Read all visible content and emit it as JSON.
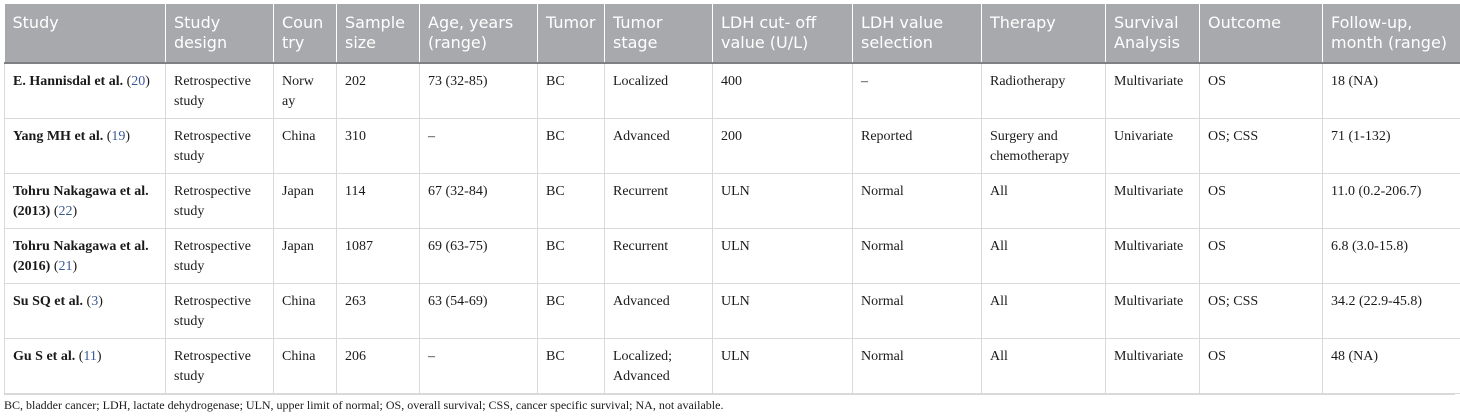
{
  "table": {
    "headers": [
      "Study",
      "Study design",
      "Coun try",
      "Sample size",
      "Age, years (range)",
      "Tumor",
      "Tumor stage",
      "LDH cut- off value (U/L)",
      "LDH value selection",
      "Therapy",
      "Survival Analysis",
      "Outcome",
      "Follow-up, month (range)"
    ],
    "rows": [
      {
        "study_name": "E. Hannisdal et al.",
        "study_ref": "20",
        "design": "Retrospective study",
        "country": "Norw ay",
        "size": "202",
        "age": "73 (32-85)",
        "tumor": "BC",
        "stage": "Localized",
        "cutoff": "400",
        "selection": "–",
        "therapy": "Radiotherapy",
        "survival": "Multivariate",
        "outcome": "OS",
        "followup": "18 (NA)"
      },
      {
        "study_name": "Yang MH et al.",
        "study_ref": "19",
        "design": "Retrospective study",
        "country": "China",
        "size": "310",
        "age": "–",
        "tumor": "BC",
        "stage": "Advanced",
        "cutoff": "200",
        "selection": "Reported",
        "therapy": "Surgery and chemotherapy",
        "survival": "Univariate",
        "outcome": "OS; CSS",
        "followup": "71 (1-132)"
      },
      {
        "study_name": "Tohru Nakagawa et al. (2013)",
        "study_ref": "22",
        "design": "Retrospective study",
        "country": "Japan",
        "size": "114",
        "age": "67 (32-84)",
        "tumor": "BC",
        "stage": "Recurrent",
        "cutoff": "ULN",
        "selection": "Normal",
        "therapy": "All",
        "survival": "Multivariate",
        "outcome": "OS",
        "followup": "11.0 (0.2-206.7)"
      },
      {
        "study_name": "Tohru Nakagawa et al. (2016)",
        "study_ref": "21",
        "design": "Retrospective study",
        "country": "Japan",
        "size": "1087",
        "age": "69 (63-75)",
        "tumor": "BC",
        "stage": "Recurrent",
        "cutoff": "ULN",
        "selection": "Normal",
        "therapy": "All",
        "survival": "Multivariate",
        "outcome": "OS",
        "followup": "6.8 (3.0-15.8)"
      },
      {
        "study_name": "Su SQ et al.",
        "study_ref": "3",
        "design": "Retrospective study",
        "country": "China",
        "size": "263",
        "age": "63 (54-69)",
        "tumor": "BC",
        "stage": "Advanced",
        "cutoff": "ULN",
        "selection": "Normal",
        "therapy": "All",
        "survival": "Multivariate",
        "outcome": "OS; CSS",
        "followup": "34.2 (22.9-45.8)"
      },
      {
        "study_name": "Gu S et al.",
        "study_ref": "11",
        "design": "Retrospective study",
        "country": "China",
        "size": "206",
        "age": "–",
        "tumor": "BC",
        "stage": "Localized; Advanced",
        "cutoff": "ULN",
        "selection": "Normal",
        "therapy": "All",
        "survival": "Multivariate",
        "outcome": "OS",
        "followup": "48 (NA)"
      }
    ],
    "footnote": "BC, bladder cancer; LDH, lactate dehydrogenase; ULN, upper limit of normal; OS, overall survival; CSS, cancer specific survival; NA, not available."
  },
  "colors": {
    "header_bg": "#a7a9ac",
    "header_text": "#ffffff",
    "reference_link": "#3b5998",
    "grid_line": "#d9d9d9"
  }
}
